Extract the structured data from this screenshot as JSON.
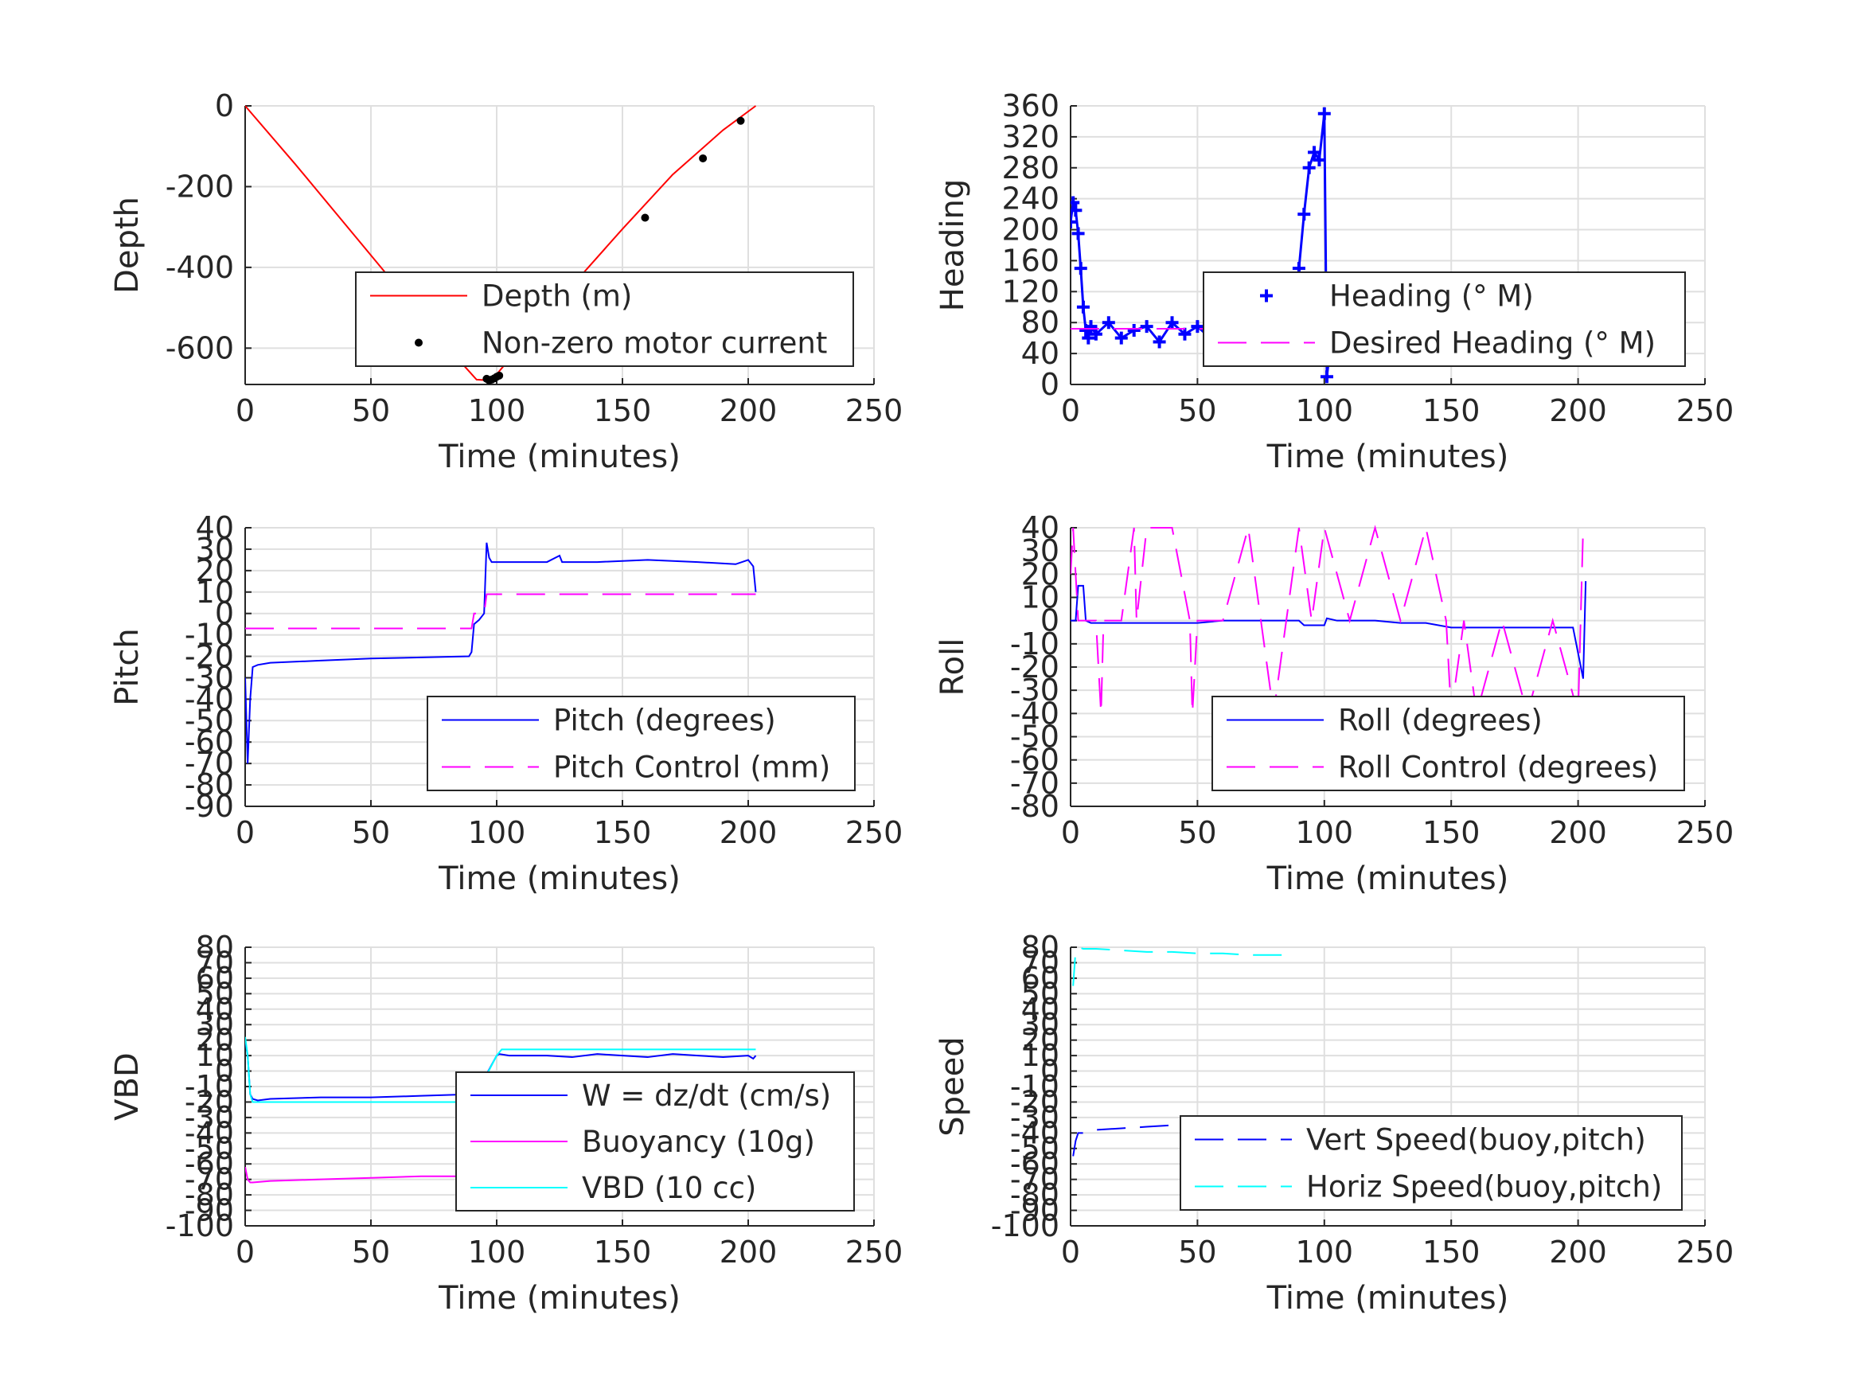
{
  "chart_data": [
    {
      "id": "depth",
      "type": "line",
      "xlabel": "Time (minutes)",
      "ylabel": "Depth",
      "xlim": [
        0,
        250
      ],
      "ylim": [
        -690,
        0
      ],
      "xticks": [
        0,
        50,
        100,
        150,
        200,
        250
      ],
      "yticks": [
        0,
        -200,
        -400,
        -600
      ],
      "series": [
        {
          "name": "Depth (m)",
          "color": "#ff0000",
          "style": "solid",
          "x": [
            0,
            20,
            40,
            60,
            80,
            92,
            97,
            100,
            110,
            130,
            150,
            170,
            190,
            203
          ],
          "y": [
            0,
            -145,
            -295,
            -445,
            -595,
            -678,
            -680,
            -665,
            -590,
            -445,
            -305,
            -170,
            -60,
            0
          ]
        },
        {
          "name": "Non-zero motor current",
          "color": "#000000",
          "style": "dots",
          "x": [
            96,
            97,
            98,
            99,
            100,
            101,
            159,
            182,
            197
          ],
          "y": [
            -676,
            -680,
            -678,
            -675,
            -671,
            -668,
            -277,
            -130,
            -37
          ]
        }
      ],
      "legend": "lower-right"
    },
    {
      "id": "heading",
      "type": "scatter",
      "xlabel": "Time (minutes)",
      "ylabel": "Heading",
      "xlim": [
        0,
        250
      ],
      "ylim": [
        0,
        360
      ],
      "xticks": [
        0,
        50,
        100,
        150,
        200,
        250
      ],
      "yticks": [
        0,
        40,
        80,
        120,
        160,
        200,
        240,
        280,
        320,
        360
      ],
      "series": [
        {
          "name": "Heading (° M)",
          "color": "#0000ff",
          "style": "plus",
          "x": [
            0,
            1,
            2,
            3,
            4,
            5,
            6,
            7,
            8,
            10,
            15,
            20,
            25,
            30,
            35,
            40,
            45,
            50,
            55,
            60,
            65,
            70,
            75,
            80,
            85,
            88,
            90,
            92,
            94,
            96,
            98,
            100,
            101,
            102,
            103,
            105,
            110,
            115,
            120,
            125,
            130,
            135,
            140,
            145,
            150,
            155,
            160,
            165,
            170,
            175,
            180,
            185,
            190,
            195,
            200,
            204
          ],
          "y": [
            210,
            235,
            225,
            195,
            150,
            100,
            70,
            60,
            75,
            65,
            80,
            60,
            70,
            75,
            55,
            80,
            65,
            75,
            60,
            70,
            75,
            60,
            80,
            70,
            75,
            90,
            150,
            220,
            280,
            300,
            290,
            350,
            10,
            40,
            70,
            75,
            60,
            80,
            55,
            90,
            70,
            45,
            60,
            85,
            40,
            70,
            130,
            60,
            75,
            55,
            85,
            70,
            60,
            80,
            70,
            75
          ]
        },
        {
          "name": "Desired Heading (° M)",
          "color": "#ff00ff",
          "style": "dashed",
          "x": [
            0,
            204
          ],
          "y": [
            72,
            72
          ]
        }
      ],
      "legend": "center-right"
    },
    {
      "id": "pitch",
      "type": "line",
      "xlabel": "Time (minutes)",
      "ylabel": "Pitch",
      "xlim": [
        0,
        250
      ],
      "ylim": [
        -90,
        40
      ],
      "xticks": [
        0,
        50,
        100,
        150,
        200,
        250
      ],
      "yticks": [
        40,
        30,
        20,
        10,
        0,
        -10,
        -20,
        -30,
        -40,
        -50,
        -60,
        -70,
        -80,
        -90
      ],
      "series": [
        {
          "name": "Pitch (degrees)",
          "color": "#0000ff",
          "style": "solid",
          "x": [
            0,
            1,
            2,
            3,
            5,
            10,
            30,
            50,
            70,
            89,
            90,
            91,
            93,
            95,
            96,
            97,
            98,
            100,
            120,
            125,
            126,
            140,
            160,
            180,
            195,
            200,
            202,
            203
          ],
          "y": [
            -30,
            -70,
            -40,
            -25,
            -24,
            -23,
            -22,
            -21,
            -20.5,
            -20,
            -18,
            -5,
            -3,
            0,
            33,
            26,
            24,
            24,
            24,
            27,
            24,
            24,
            25,
            24,
            23,
            25,
            22,
            10
          ]
        },
        {
          "name": "Pitch Control (mm)",
          "color": "#ff00ff",
          "style": "dashed",
          "x": [
            0,
            90,
            91,
            95,
            96,
            203
          ],
          "y": [
            -7,
            -7,
            0,
            0,
            9,
            9
          ]
        }
      ],
      "legend": "lower-right"
    },
    {
      "id": "roll",
      "type": "line",
      "xlabel": "Time (minutes)",
      "ylabel": "Roll",
      "xlim": [
        0,
        250
      ],
      "ylim": [
        -80,
        40
      ],
      "xticks": [
        0,
        50,
        100,
        150,
        200,
        250
      ],
      "yticks": [
        40,
        30,
        20,
        10,
        0,
        -10,
        -20,
        -30,
        -40,
        -50,
        -60,
        -70,
        -80
      ],
      "series": [
        {
          "name": "Roll (degrees)",
          "color": "#0000ff",
          "style": "solid",
          "x": [
            0,
            2,
            3,
            5,
            6,
            8,
            12,
            15,
            20,
            25,
            30,
            40,
            45,
            50,
            60,
            70,
            80,
            85,
            90,
            92,
            100,
            101,
            105,
            120,
            130,
            140,
            150,
            160,
            170,
            180,
            190,
            198,
            202,
            203
          ],
          "y": [
            0,
            0,
            15,
            15,
            0,
            -1,
            -1,
            -1,
            -1,
            -1,
            -1,
            -1,
            -1,
            -1,
            0,
            0,
            0,
            0,
            0,
            -2,
            -2,
            1,
            0,
            0,
            -1,
            -1,
            -3,
            -3,
            -3,
            -3,
            -3,
            -3,
            -25,
            17
          ]
        },
        {
          "name": "Roll Control (degrees)",
          "color": "#ff00ff",
          "style": "dashed",
          "x": [
            0,
            1,
            2,
            3,
            10,
            12,
            13,
            20,
            25,
            26,
            30,
            40,
            47,
            48,
            50,
            60,
            70,
            75,
            80,
            85,
            90,
            95,
            100,
            110,
            120,
            130,
            140,
            148,
            150,
            155,
            160,
            170,
            180,
            190,
            200,
            202,
            203
          ],
          "y": [
            20,
            40,
            20,
            0,
            0,
            -40,
            0,
            0,
            40,
            0,
            40,
            40,
            0,
            -40,
            0,
            0,
            40,
            0,
            -40,
            0,
            40,
            0,
            40,
            0,
            40,
            0,
            40,
            0,
            -40,
            0,
            -40,
            0,
            -40,
            0,
            -40,
            40,
            40
          ]
        }
      ],
      "legend": "lower-right"
    },
    {
      "id": "vbd",
      "type": "line",
      "xlabel": "Time (minutes)",
      "ylabel": "VBD",
      "xlim": [
        0,
        250
      ],
      "ylim": [
        -100,
        80
      ],
      "xticks": [
        0,
        50,
        100,
        150,
        200,
        250
      ],
      "yticks": [
        80,
        70,
        60,
        50,
        40,
        30,
        20,
        10,
        0,
        -10,
        -20,
        -30,
        -40,
        -50,
        -60,
        -70,
        -80,
        -90,
        -100
      ],
      "series": [
        {
          "name": "W = dz/dt (cm/s)",
          "color": "#0000ff",
          "style": "solid",
          "x": [
            0,
            1,
            2,
            3,
            5,
            10,
            30,
            50,
            70,
            89,
            90,
            92,
            95,
            100,
            101,
            105,
            120,
            130,
            140,
            150,
            160,
            170,
            180,
            190,
            200,
            202,
            203
          ],
          "y": [
            20,
            10,
            -15,
            -18,
            -19,
            -18,
            -17,
            -17,
            -16,
            -15,
            -18,
            -10,
            -5,
            10,
            11,
            10,
            10,
            9,
            11,
            10,
            9,
            11,
            10,
            9,
            10,
            8,
            10
          ]
        },
        {
          "name": "Buoyancy (10g)",
          "color": "#ff00ff",
          "style": "solid",
          "x": [
            0,
            1,
            2,
            3,
            10,
            30,
            50,
            70,
            90
          ],
          "y": [
            -62,
            -70,
            -72,
            -72,
            -71,
            -70,
            -69,
            -68,
            -68
          ]
        },
        {
          "name": "VBD (10 cc)",
          "color": "#00ffff",
          "style": "solid",
          "x": [
            0,
            1,
            2,
            3,
            90,
            92,
            100,
            102,
            203
          ],
          "y": [
            22,
            10,
            -15,
            -20,
            -20,
            -15,
            10,
            14,
            14
          ]
        }
      ],
      "legend": "lower-right"
    },
    {
      "id": "speed",
      "type": "line",
      "xlabel": "Time (minutes)",
      "ylabel": "Speed",
      "xlim": [
        0,
        250
      ],
      "ylim": [
        -100,
        80
      ],
      "xticks": [
        0,
        50,
        100,
        150,
        200,
        250
      ],
      "yticks": [
        80,
        70,
        60,
        50,
        40,
        30,
        20,
        10,
        0,
        -10,
        -20,
        -30,
        -40,
        -50,
        -60,
        -70,
        -80,
        -90,
        -100
      ],
      "series": [
        {
          "name": "Vert Speed(buoy,pitch)",
          "color": "#0000ff",
          "style": "dashed",
          "x": [
            1,
            2,
            3,
            5,
            10,
            20,
            30,
            40,
            50,
            60,
            70,
            80,
            90
          ],
          "y": [
            -55,
            -45,
            -40,
            -40,
            -38,
            -37,
            -36,
            -35,
            -34,
            -33,
            -33,
            -32,
            -32
          ]
        },
        {
          "name": "Horiz Speed(buoy,pitch)",
          "color": "#00ffff",
          "style": "dashed",
          "x": [
            1,
            2,
            3,
            5,
            10,
            20,
            30,
            40,
            50,
            60,
            70,
            80,
            85
          ],
          "y": [
            55,
            78,
            80,
            79,
            79,
            78,
            77,
            77,
            76,
            76,
            75,
            75,
            75
          ]
        }
      ],
      "legend": "lower-right"
    }
  ]
}
